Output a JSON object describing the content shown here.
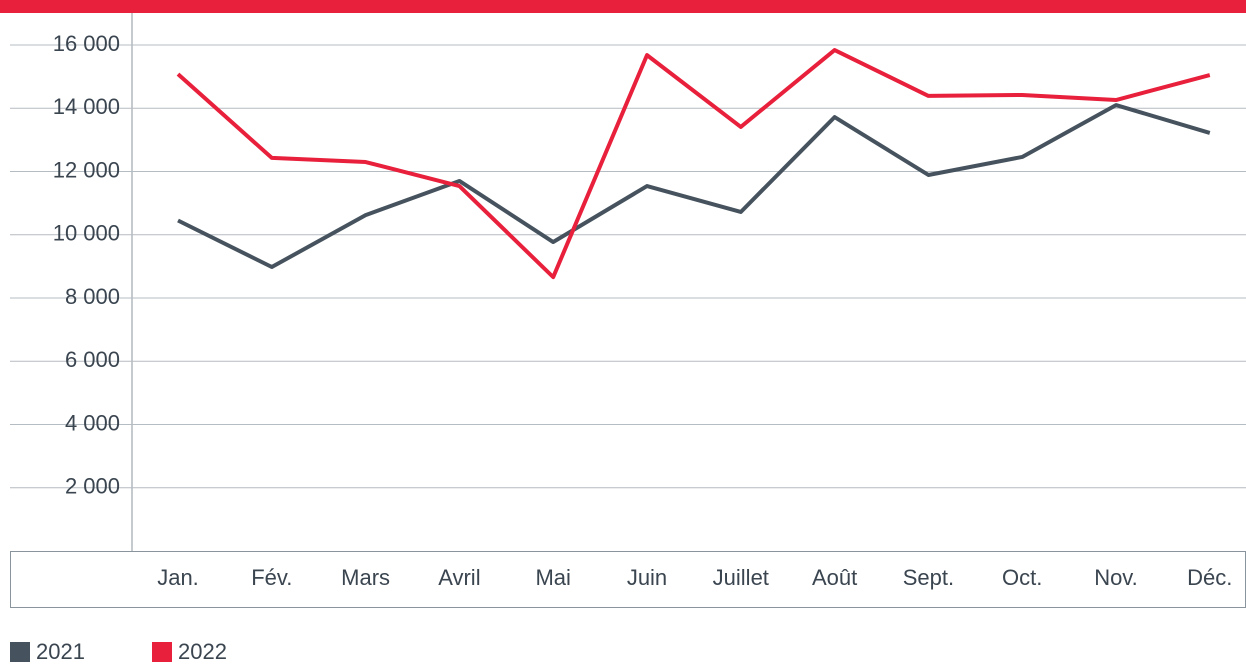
{
  "chart_data": {
    "type": "line",
    "categories": [
      "Jan.",
      "Fév.",
      "Mars",
      "Avril",
      "Mai",
      "Juin",
      "Juillet",
      "Août",
      "Sept.",
      "Oct.",
      "Nov.",
      "Déc."
    ],
    "series": [
      {
        "name": "2021",
        "color": "#46535e",
        "values": [
          10450,
          8980,
          10620,
          11700,
          9770,
          11540,
          10720,
          13720,
          11890,
          12460,
          14100,
          13220
        ]
      },
      {
        "name": "2022",
        "color": "#e8203b",
        "values": [
          15080,
          12430,
          12300,
          11540,
          8660,
          15680,
          13410,
          15840,
          14390,
          14420,
          14260,
          15050
        ]
      }
    ],
    "ylim": [
      0,
      16000
    ],
    "yticks": [
      {
        "value": 2000,
        "label": "2 000"
      },
      {
        "value": 4000,
        "label": "4 000"
      },
      {
        "value": 6000,
        "label": "6 000"
      },
      {
        "value": 8000,
        "label": "8 000"
      },
      {
        "value": 10000,
        "label": "10 000"
      },
      {
        "value": 12000,
        "label": "12 000"
      },
      {
        "value": 14000,
        "label": "14 000"
      },
      {
        "value": 16000,
        "label": "16 000"
      }
    ],
    "grid": true
  }
}
